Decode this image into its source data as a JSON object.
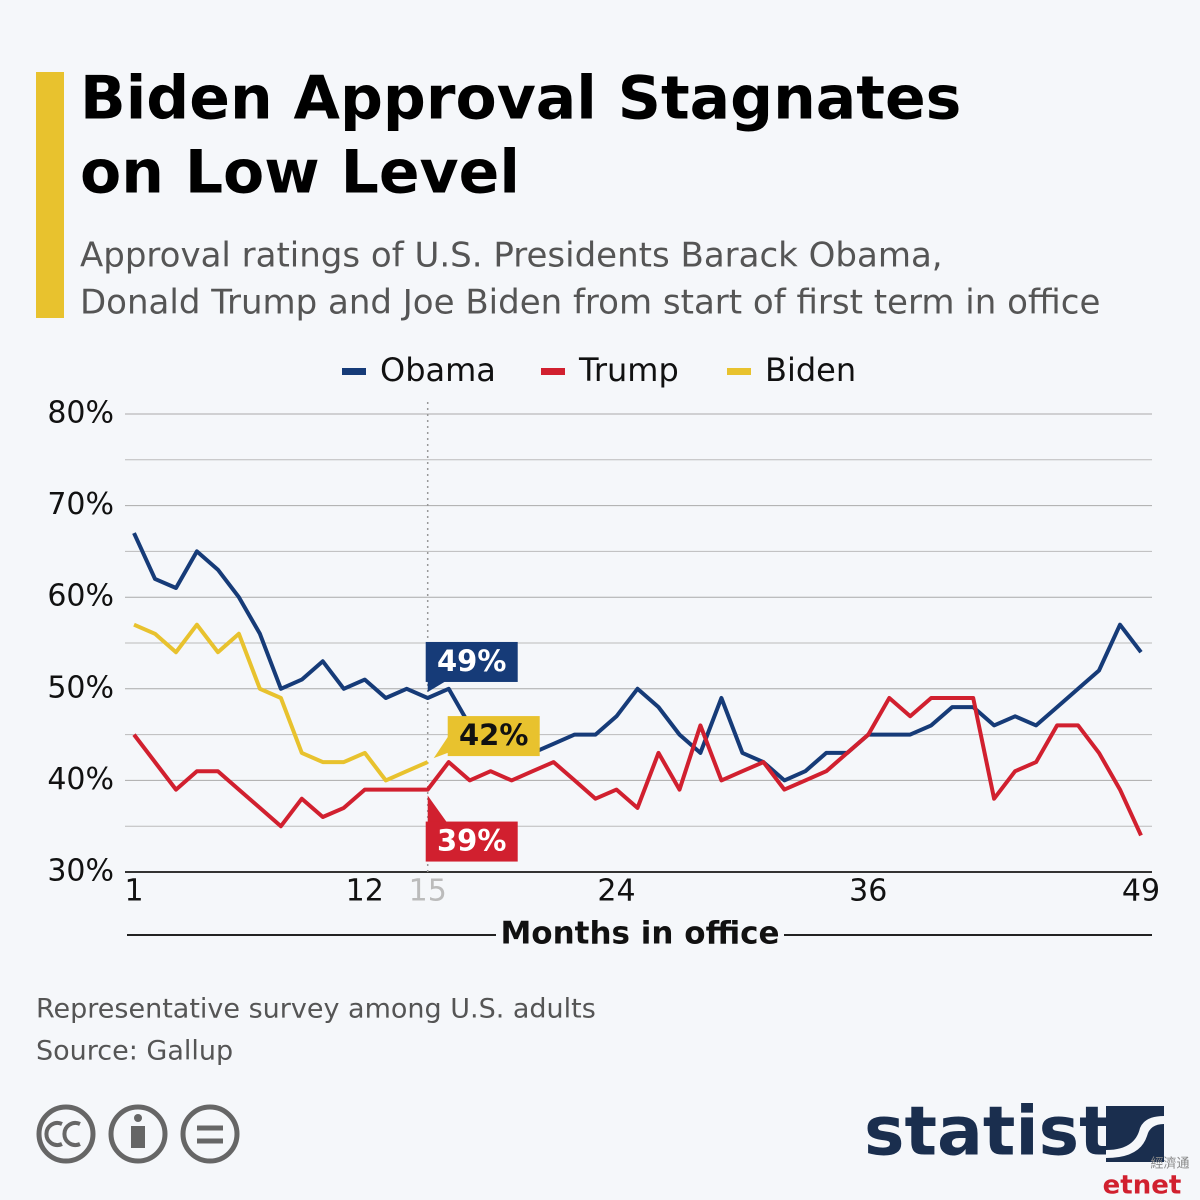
{
  "chart_data": {
    "type": "line",
    "title": [
      "Biden Approval Stagnates",
      "on Low Level"
    ],
    "subtitle": [
      "Approval ratings of U.S. Presidents Barack Obama,",
      "Donald Trump and Joe Biden from start of first term in office"
    ],
    "x_label": "Months in office",
    "x": [
      1,
      2,
      3,
      4,
      5,
      6,
      7,
      8,
      9,
      10,
      11,
      12,
      13,
      14,
      15,
      16,
      17,
      18,
      19,
      20,
      21,
      22,
      23,
      24,
      25,
      26,
      27,
      28,
      29,
      30,
      31,
      32,
      33,
      34,
      35,
      36,
      37,
      38,
      39,
      40,
      41,
      42,
      43,
      44,
      45,
      46,
      47,
      48,
      49
    ],
    "xlim": [
      1,
      49
    ],
    "xticks": [
      1,
      12,
      24,
      36,
      49
    ],
    "reference_line": {
      "x": 15
    },
    "ylim": [
      30,
      80
    ],
    "yticks": [
      {
        "value": 30,
        "label": "30%"
      },
      {
        "value": 40,
        "label": "40%"
      },
      {
        "value": 50,
        "label": "50%"
      },
      {
        "value": 60,
        "label": "60%"
      },
      {
        "value": 70,
        "label": "70%"
      },
      {
        "value": 80,
        "label": "80%"
      }
    ],
    "yminor": [
      35,
      45,
      55,
      65,
      75
    ],
    "grid": true,
    "series": [
      {
        "name": "Obama",
        "color": "#163b78",
        "values": [
          67,
          62,
          61,
          65,
          63,
          60,
          56,
          50,
          51,
          53,
          50,
          51,
          49,
          50,
          49,
          50,
          46,
          44,
          43,
          43,
          44,
          45,
          45,
          47,
          50,
          48,
          45,
          43,
          49,
          43,
          42,
          40,
          41,
          43,
          43,
          45,
          45,
          45,
          46,
          48,
          48,
          46,
          47,
          46,
          48,
          50,
          52,
          57,
          54
        ],
        "value_labels": [
          null,
          null,
          null,
          null,
          null,
          null,
          null,
          null,
          null,
          null,
          null,
          null,
          null,
          null,
          "49%",
          null,
          null,
          null,
          null,
          null,
          null,
          null,
          null,
          null,
          null,
          null,
          null,
          null,
          null,
          null,
          null,
          null,
          null,
          null,
          null,
          null,
          null,
          null,
          null,
          null,
          null,
          null,
          null,
          null,
          null,
          null,
          null,
          null,
          null
        ]
      },
      {
        "name": "Trump",
        "color": "#d1202f",
        "values": [
          45,
          42,
          39,
          41,
          41,
          39,
          37,
          35,
          38,
          36,
          37,
          39,
          39,
          39,
          39,
          42,
          40,
          41,
          40,
          41,
          42,
          40,
          38,
          39,
          37,
          43,
          39,
          46,
          40,
          41,
          42,
          39,
          40,
          41,
          43,
          45,
          49,
          47,
          49,
          49,
          49,
          38,
          41,
          42,
          46,
          46,
          43,
          39,
          34
        ],
        "value_labels": [
          null,
          null,
          null,
          null,
          null,
          null,
          null,
          null,
          null,
          null,
          null,
          null,
          null,
          null,
          "39%",
          null,
          null,
          null,
          null,
          null,
          null,
          null,
          null,
          null,
          null,
          null,
          null,
          null,
          null,
          null,
          null,
          null,
          null,
          null,
          null,
          null,
          null,
          null,
          null,
          null,
          null,
          null,
          null,
          null,
          null,
          null,
          null,
          null,
          null
        ]
      },
      {
        "name": "Biden",
        "color": "#e8c22e",
        "values": [
          57,
          56,
          54,
          57,
          54,
          56,
          50,
          49,
          43,
          42,
          42,
          43,
          40,
          41,
          42,
          null,
          null,
          null,
          null,
          null,
          null,
          null,
          null,
          null,
          null,
          null,
          null,
          null,
          null,
          null,
          null,
          null,
          null,
          null,
          null,
          null,
          null,
          null,
          null,
          null,
          null,
          null,
          null,
          null,
          null,
          null,
          null,
          null,
          null
        ],
        "value_labels": [
          null,
          null,
          null,
          null,
          null,
          null,
          null,
          null,
          null,
          null,
          null,
          null,
          null,
          null,
          "42%",
          null,
          null,
          null,
          null,
          null,
          null,
          null,
          null,
          null,
          null,
          null,
          null,
          null,
          null,
          null,
          null,
          null,
          null,
          null,
          null,
          null,
          null,
          null,
          null,
          null,
          null,
          null,
          null,
          null,
          null,
          null,
          null,
          null,
          null
        ]
      }
    ],
    "legend": "top",
    "notes": [
      "Representative survey among U.S. adults",
      "Source: Gallup"
    ],
    "brand": "statista",
    "watermark": [
      "經濟通",
      "etnet"
    ]
  }
}
